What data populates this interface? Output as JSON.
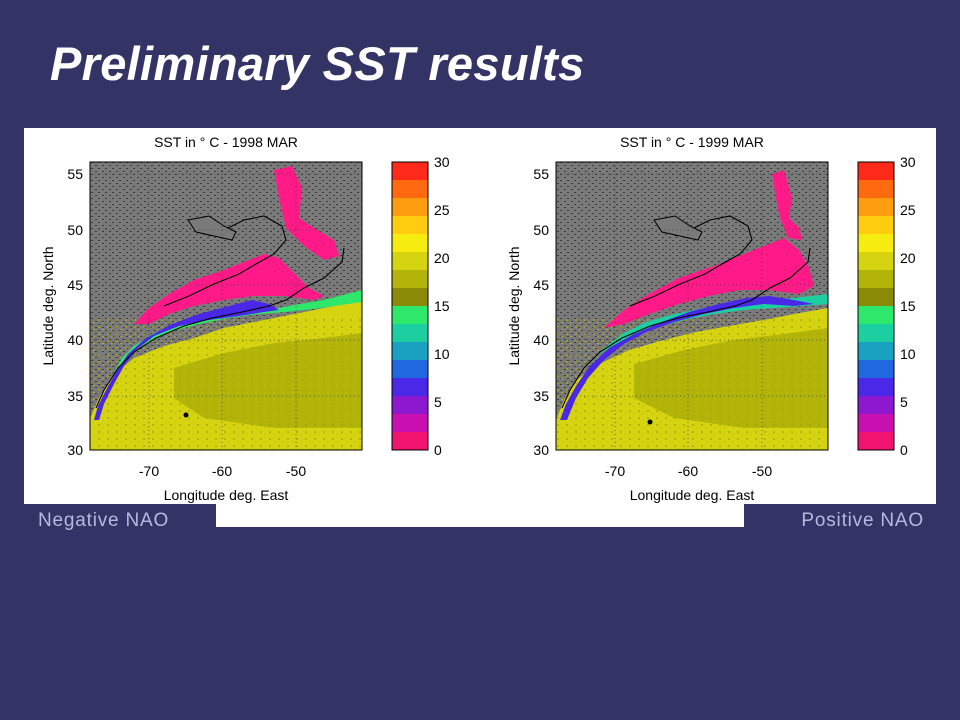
{
  "slide": {
    "title": "Preliminary SST results"
  },
  "maps": [
    {
      "title": "SST in ° C  - 1998  MAR",
      "caption": "Negative NAO",
      "year": 1998,
      "month": "MAR",
      "variable": "SST",
      "unit": "°C"
    },
    {
      "title": "SST in ° C  - 1999  MAR",
      "caption": "Positive NAO",
      "year": 1999,
      "month": "MAR",
      "variable": "SST",
      "unit": "°C"
    }
  ],
  "axes": {
    "xlabel": "Longitude deg. East",
    "ylabel": "Latitude deg. North",
    "x_ticks": [
      "-70",
      "-60",
      "-50"
    ],
    "y_ticks": [
      "55",
      "50",
      "45",
      "40",
      "35",
      "30"
    ]
  },
  "colorbar": {
    "tick_labels": [
      "30",
      "25",
      "20",
      "15",
      "10",
      "5",
      "0"
    ],
    "range": [
      0,
      30
    ],
    "colors": [
      "#ff2a1a",
      "#ff6a10",
      "#ff9d10",
      "#ffcc10",
      "#f6ec10",
      "#d6d410",
      "#b2b40a",
      "#8a8a06",
      "#2de86a",
      "#1ccfa0",
      "#1aa0c0",
      "#2068e0",
      "#4a28e8",
      "#8c18d0",
      "#c810b0",
      "#f01470"
    ]
  },
  "colors": {
    "background": "#333366",
    "land": "#7a7a7a",
    "warm_water": "#d6d410",
    "cold_water": "#ff1a88"
  }
}
